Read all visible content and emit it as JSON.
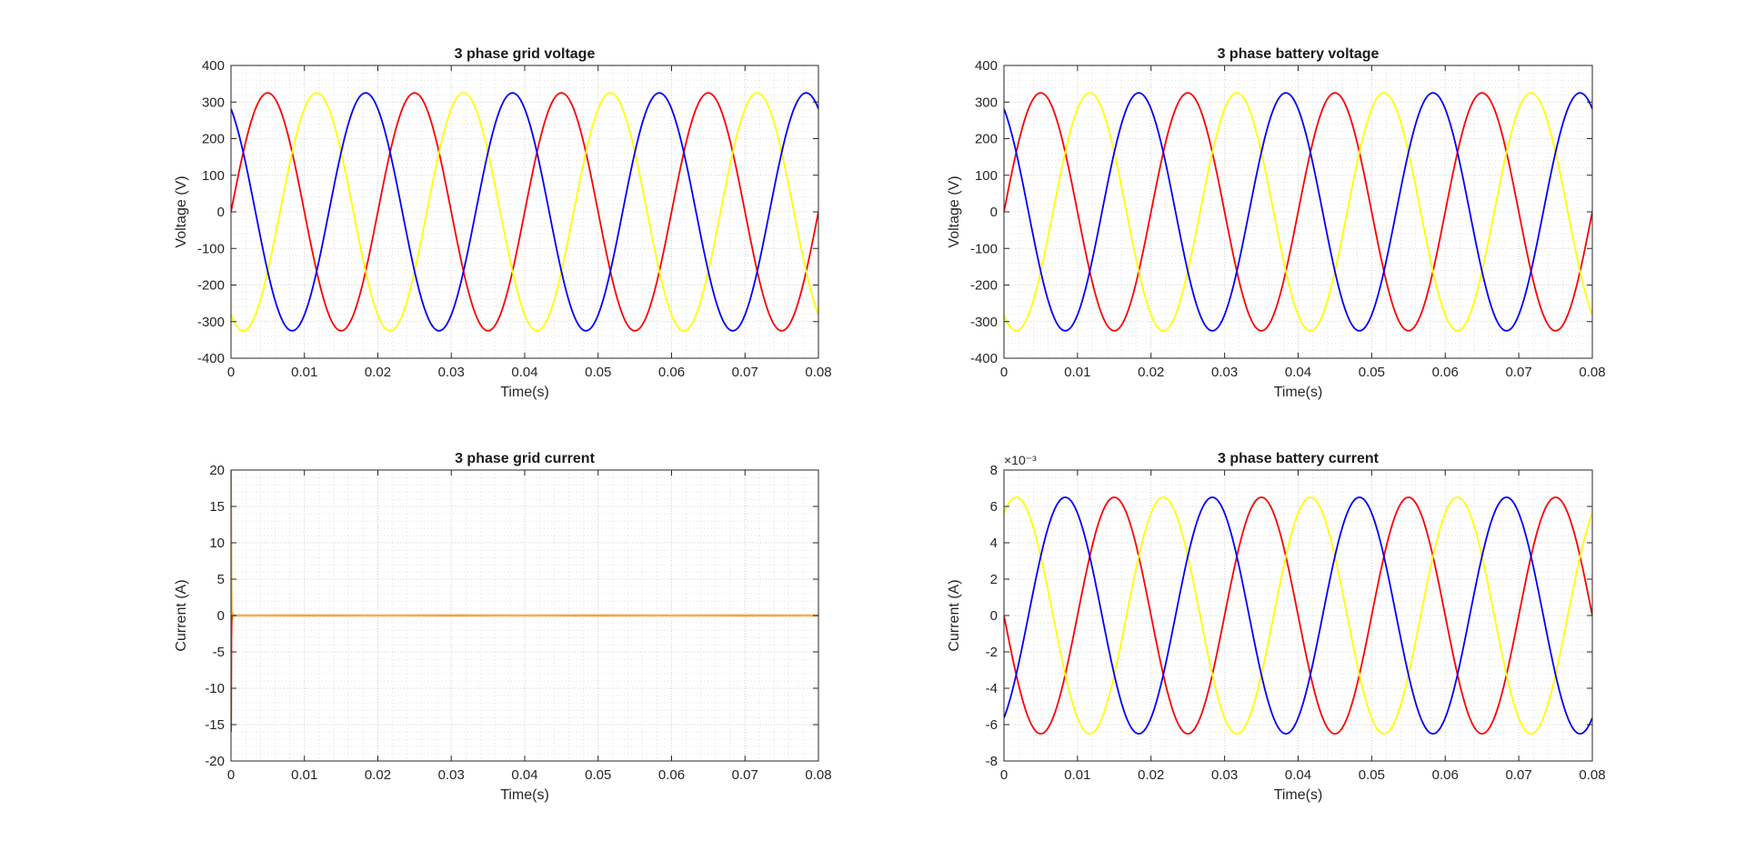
{
  "chart_data": [
    {
      "type": "line",
      "title": "3 phase grid voltage",
      "xlabel": "Time(s)",
      "ylabel": "Voltage (V)",
      "xlim": [
        0,
        0.08
      ],
      "ylim": [
        -400,
        400
      ],
      "xticks": [
        0,
        0.01,
        0.02,
        0.03,
        0.04,
        0.05,
        0.06,
        0.07,
        0.08
      ],
      "xtick_labels": [
        "0",
        "0.01",
        "0.02",
        "0.03",
        "0.04",
        "0.05",
        "0.06",
        "0.07",
        "0.08"
      ],
      "yticks": [
        -400,
        -300,
        -200,
        -100,
        0,
        100,
        200,
        300,
        400
      ],
      "ytick_labels": [
        "-400",
        "-300",
        "-200",
        "-100",
        "0",
        "100",
        "200",
        "300",
        "400"
      ],
      "grid": true,
      "minor_grid": true,
      "y_exponent": "",
      "series": [
        {
          "color": "#ff0000",
          "waveform": "sine",
          "amplitude": 325,
          "frequency_hz": 50,
          "phase_deg": 0
        },
        {
          "color": "#ffff00",
          "waveform": "sine",
          "amplitude": 325,
          "frequency_hz": 50,
          "phase_deg": -120
        },
        {
          "color": "#0000ff",
          "waveform": "sine",
          "amplitude": 325,
          "frequency_hz": 50,
          "phase_deg": 120
        }
      ]
    },
    {
      "type": "line",
      "title": "3 phase battery voltage",
      "xlabel": "Time(s)",
      "ylabel": "Voltage (V)",
      "xlim": [
        0,
        0.08
      ],
      "ylim": [
        -400,
        400
      ],
      "xticks": [
        0,
        0.01,
        0.02,
        0.03,
        0.04,
        0.05,
        0.06,
        0.07,
        0.08
      ],
      "xtick_labels": [
        "0",
        "0.01",
        "0.02",
        "0.03",
        "0.04",
        "0.05",
        "0.06",
        "0.07",
        "0.08"
      ],
      "yticks": [
        -400,
        -300,
        -200,
        -100,
        0,
        100,
        200,
        300,
        400
      ],
      "ytick_labels": [
        "-400",
        "-300",
        "-200",
        "-100",
        "0",
        "100",
        "200",
        "300",
        "400"
      ],
      "grid": true,
      "minor_grid": true,
      "y_exponent": "",
      "series": [
        {
          "color": "#ff0000",
          "waveform": "sine",
          "amplitude": 325,
          "frequency_hz": 50,
          "phase_deg": 0
        },
        {
          "color": "#ffff00",
          "waveform": "sine",
          "amplitude": 325,
          "frequency_hz": 50,
          "phase_deg": -120
        },
        {
          "color": "#0000ff",
          "waveform": "sine",
          "amplitude": 325,
          "frequency_hz": 50,
          "phase_deg": 120
        }
      ]
    },
    {
      "type": "line",
      "title": "3 phase grid current",
      "xlabel": "Time(s)",
      "ylabel": "Current (A)",
      "xlim": [
        0,
        0.08
      ],
      "ylim": [
        -20,
        20
      ],
      "xticks": [
        0,
        0.01,
        0.02,
        0.03,
        0.04,
        0.05,
        0.06,
        0.07,
        0.08
      ],
      "xtick_labels": [
        "0",
        "0.01",
        "0.02",
        "0.03",
        "0.04",
        "0.05",
        "0.06",
        "0.07",
        "0.08"
      ],
      "yticks": [
        -20,
        -15,
        -10,
        -5,
        0,
        5,
        10,
        15,
        20
      ],
      "ytick_labels": [
        "-20",
        "-15",
        "-10",
        "-5",
        "0",
        "5",
        "10",
        "15",
        "20"
      ],
      "grid": true,
      "minor_grid": true,
      "y_exponent": "",
      "series": [
        {
          "color": "#e8421a",
          "waveform": "points",
          "x": [
            0,
            5e-05,
            0.0001,
            0.0002,
            0.0005,
            0.08
          ],
          "y": [
            -16,
            -3,
            -0.6,
            0,
            0,
            0
          ]
        },
        {
          "color": "#f5b041",
          "waveform": "points",
          "x": [
            0,
            5e-05,
            0.0001,
            0.0003,
            0.01,
            0.02,
            0.03,
            0.04,
            0.05,
            0.06,
            0.07,
            0.08
          ],
          "y": [
            20,
            5,
            0.5,
            0,
            0.05,
            0,
            0.05,
            0,
            0.05,
            0,
            0.05,
            0
          ]
        }
      ]
    },
    {
      "type": "line",
      "title": "3 phase battery current",
      "xlabel": "Time(s)",
      "ylabel": "Current (A)",
      "xlim": [
        0,
        0.08
      ],
      "ylim": [
        -8,
        8
      ],
      "xticks": [
        0,
        0.01,
        0.02,
        0.03,
        0.04,
        0.05,
        0.06,
        0.07,
        0.08
      ],
      "xtick_labels": [
        "0",
        "0.01",
        "0.02",
        "0.03",
        "0.04",
        "0.05",
        "0.06",
        "0.07",
        "0.08"
      ],
      "yticks": [
        -8,
        -6,
        -4,
        -2,
        0,
        2,
        4,
        6,
        8
      ],
      "ytick_labels": [
        "-8",
        "-6",
        "-4",
        "-2",
        "0",
        "2",
        "4",
        "6",
        "8"
      ],
      "grid": true,
      "minor_grid": true,
      "y_exponent": "×10⁻³",
      "series": [
        {
          "color": "#ff0000",
          "waveform": "sine",
          "amplitude": 6.5,
          "frequency_hz": 50,
          "phase_deg": 180
        },
        {
          "color": "#ffff00",
          "waveform": "sine",
          "amplitude": 6.5,
          "frequency_hz": 50,
          "phase_deg": 60
        },
        {
          "color": "#0000ff",
          "waveform": "sine",
          "amplitude": 6.5,
          "frequency_hz": 50,
          "phase_deg": -60
        }
      ]
    }
  ]
}
